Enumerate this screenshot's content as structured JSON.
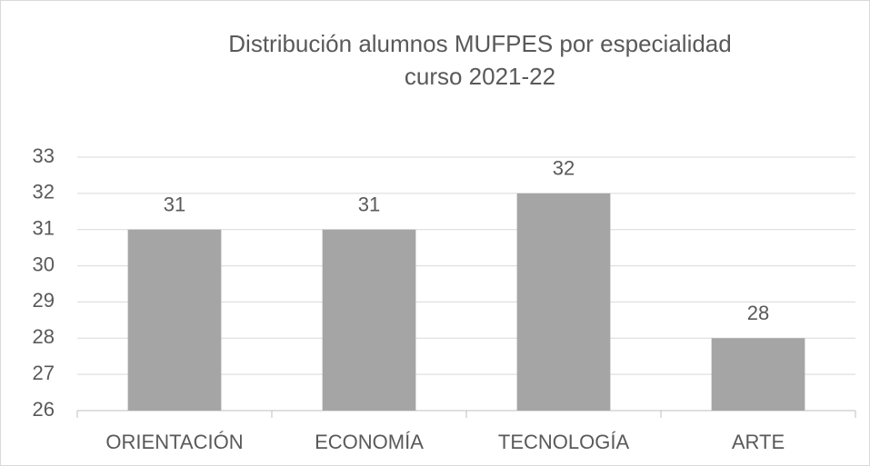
{
  "chart_data": {
    "type": "bar",
    "title": "Distribución alumnos MUFPES por especialidad",
    "subtitle": "curso 2021-22",
    "categories": [
      "ORIENTACIÓN",
      "ECONOMÍA",
      "TECNOLOGÍA",
      "ARTE"
    ],
    "values": [
      31,
      31,
      32,
      28
    ],
    "color": "#a5a5a5",
    "ylim": [
      26,
      33
    ],
    "yticks": [
      26,
      27,
      28,
      29,
      30,
      31,
      32,
      33
    ],
    "grid": true,
    "data_labels": true
  }
}
